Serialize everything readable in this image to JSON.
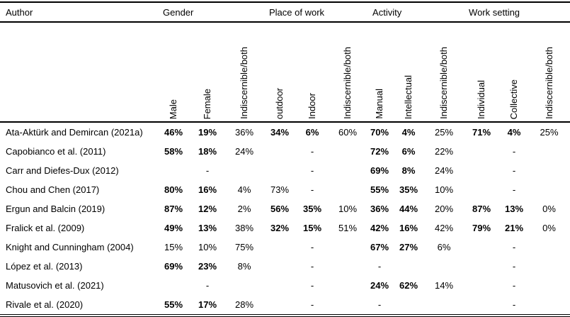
{
  "table": {
    "author_header": "Author",
    "groups": [
      {
        "label": "Gender",
        "columns": [
          "Male",
          "Female",
          "Indiscernible/both"
        ]
      },
      {
        "label": "Place of work",
        "columns": [
          "outdoor",
          "Indoor",
          "Indiscernible/both"
        ]
      },
      {
        "label": "Activity",
        "columns": [
          "Manual",
          "Intellectual",
          "Indiscernible/both"
        ]
      },
      {
        "label": "Work setting",
        "columns": [
          "Individual",
          "Collective",
          "Indiscernible/both"
        ]
      }
    ],
    "rows": [
      {
        "author": "Ata-Aktürk and Demircan (2021a)",
        "cells": [
          {
            "v": "46%",
            "b": true
          },
          {
            "v": "19%",
            "b": true
          },
          {
            "v": "36%",
            "b": false
          },
          {
            "v": "34%",
            "b": true
          },
          {
            "v": "6%",
            "b": true
          },
          {
            "v": "60%",
            "b": false
          },
          {
            "v": "70%",
            "b": true
          },
          {
            "v": "4%",
            "b": true
          },
          {
            "v": "25%",
            "b": false
          },
          {
            "v": "71%",
            "b": true
          },
          {
            "v": "4%",
            "b": true
          },
          {
            "v": "25%",
            "b": false
          }
        ]
      },
      {
        "author": "Capobianco et al. (2011)",
        "cells": [
          {
            "v": "58%",
            "b": true
          },
          {
            "v": "18%",
            "b": true
          },
          {
            "v": "24%",
            "b": false
          },
          {
            "v": "",
            "b": false
          },
          {
            "v": "-",
            "b": false
          },
          {
            "v": "",
            "b": false
          },
          {
            "v": "72%",
            "b": true
          },
          {
            "v": "6%",
            "b": true
          },
          {
            "v": "22%",
            "b": false
          },
          {
            "v": "",
            "b": false
          },
          {
            "v": "-",
            "b": false
          },
          {
            "v": "",
            "b": false
          }
        ]
      },
      {
        "author": "Carr and Diefes-Dux (2012)",
        "cells": [
          {
            "v": "",
            "b": false
          },
          {
            "v": "-",
            "b": false
          },
          {
            "v": "",
            "b": false
          },
          {
            "v": "",
            "b": false
          },
          {
            "v": "-",
            "b": false
          },
          {
            "v": "",
            "b": false
          },
          {
            "v": "69%",
            "b": true
          },
          {
            "v": "8%",
            "b": true
          },
          {
            "v": "24%",
            "b": false
          },
          {
            "v": "",
            "b": false
          },
          {
            "v": "-",
            "b": false
          },
          {
            "v": "",
            "b": false
          }
        ]
      },
      {
        "author": "Chou and Chen (2017)",
        "cells": [
          {
            "v": "80%",
            "b": true
          },
          {
            "v": "16%",
            "b": true
          },
          {
            "v": "4%",
            "b": false
          },
          {
            "v": "73%",
            "b": false
          },
          {
            "v": "-",
            "b": false
          },
          {
            "v": "",
            "b": false
          },
          {
            "v": "55%",
            "b": true
          },
          {
            "v": "35%",
            "b": true
          },
          {
            "v": "10%",
            "b": false
          },
          {
            "v": "",
            "b": false
          },
          {
            "v": "-",
            "b": false
          },
          {
            "v": "",
            "b": false
          }
        ]
      },
      {
        "author": "Ergun and Balcin (2019)",
        "cells": [
          {
            "v": "87%",
            "b": true
          },
          {
            "v": "12%",
            "b": true
          },
          {
            "v": "2%",
            "b": false
          },
          {
            "v": "56%",
            "b": true
          },
          {
            "v": "35%",
            "b": true
          },
          {
            "v": "10%",
            "b": false
          },
          {
            "v": "36%",
            "b": true
          },
          {
            "v": "44%",
            "b": true
          },
          {
            "v": "20%",
            "b": false
          },
          {
            "v": "87%",
            "b": true
          },
          {
            "v": "13%",
            "b": true
          },
          {
            "v": "0%",
            "b": false
          }
        ]
      },
      {
        "author": "Fralick et al. (2009)",
        "cells": [
          {
            "v": "49%",
            "b": true
          },
          {
            "v": "13%",
            "b": true
          },
          {
            "v": "38%",
            "b": false
          },
          {
            "v": "32%",
            "b": true
          },
          {
            "v": "15%",
            "b": true
          },
          {
            "v": "51%",
            "b": false
          },
          {
            "v": "42%",
            "b": true
          },
          {
            "v": "16%",
            "b": true
          },
          {
            "v": "42%",
            "b": false
          },
          {
            "v": "79%",
            "b": true
          },
          {
            "v": "21%",
            "b": true
          },
          {
            "v": "0%",
            "b": false
          }
        ]
      },
      {
        "author": "Knight and Cunningham (2004)",
        "cells": [
          {
            "v": "15%",
            "b": false
          },
          {
            "v": "10%",
            "b": false
          },
          {
            "v": "75%",
            "b": false
          },
          {
            "v": "",
            "b": false
          },
          {
            "v": "-",
            "b": false
          },
          {
            "v": "",
            "b": false
          },
          {
            "v": "67%",
            "b": true
          },
          {
            "v": "27%",
            "b": true
          },
          {
            "v": "6%",
            "b": false
          },
          {
            "v": "",
            "b": false
          },
          {
            "v": "-",
            "b": false
          },
          {
            "v": "",
            "b": false
          }
        ]
      },
      {
        "author": "López et al. (2013)",
        "cells": [
          {
            "v": "69%",
            "b": true
          },
          {
            "v": "23%",
            "b": true
          },
          {
            "v": "8%",
            "b": false
          },
          {
            "v": "",
            "b": false
          },
          {
            "v": "-",
            "b": false
          },
          {
            "v": "",
            "b": false
          },
          {
            "v": "-",
            "b": false
          },
          {
            "v": "",
            "b": false
          },
          {
            "v": "",
            "b": false
          },
          {
            "v": "",
            "b": false
          },
          {
            "v": "-",
            "b": false
          },
          {
            "v": "",
            "b": false
          }
        ]
      },
      {
        "author": "Matusovich et al. (2021)",
        "cells": [
          {
            "v": "",
            "b": false
          },
          {
            "v": "-",
            "b": false
          },
          {
            "v": "",
            "b": false
          },
          {
            "v": "",
            "b": false
          },
          {
            "v": "-",
            "b": false
          },
          {
            "v": "",
            "b": false
          },
          {
            "v": "24%",
            "b": true
          },
          {
            "v": "62%",
            "b": true
          },
          {
            "v": "14%",
            "b": false
          },
          {
            "v": "",
            "b": false
          },
          {
            "v": "-",
            "b": false
          },
          {
            "v": "",
            "b": false
          }
        ]
      },
      {
        "author": "Rivale et al. (2020)",
        "cells": [
          {
            "v": "55%",
            "b": true
          },
          {
            "v": "17%",
            "b": true
          },
          {
            "v": "28%",
            "b": false
          },
          {
            "v": "",
            "b": false
          },
          {
            "v": "-",
            "b": false
          },
          {
            "v": "",
            "b": false
          },
          {
            "v": "-",
            "b": false
          },
          {
            "v": "",
            "b": false
          },
          {
            "v": "",
            "b": false
          },
          {
            "v": "",
            "b": false
          },
          {
            "v": "-",
            "b": false
          },
          {
            "v": "",
            "b": false
          }
        ]
      }
    ]
  }
}
